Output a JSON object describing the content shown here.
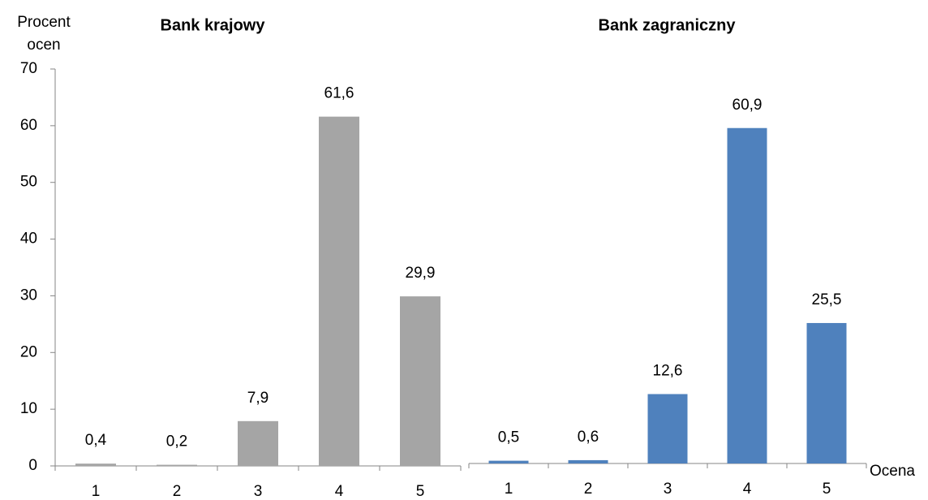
{
  "chart_data": [
    {
      "type": "bar",
      "title": "Bank  krajowy",
      "y_label": "Procent ocen",
      "categories": [
        "1",
        "2",
        "3",
        "4",
        "5"
      ],
      "values": [
        0.4,
        0.2,
        7.9,
        61.6,
        29.9
      ],
      "value_labels": [
        "0,4",
        "0,2",
        "7,9",
        "61,6",
        "29,9"
      ],
      "color": "#a5a5a5",
      "ylim": [
        0,
        70
      ],
      "yticks": [
        0,
        10,
        20,
        30,
        40,
        50,
        60,
        70
      ]
    },
    {
      "type": "bar",
      "title": "Bank zagraniczny",
      "x_label": "Ocena",
      "categories": [
        "1",
        "2",
        "3",
        "4",
        "5"
      ],
      "values": [
        0.5,
        0.6,
        12.6,
        60.9,
        25.5
      ],
      "value_labels": [
        "0,5",
        "0,6",
        "12,6",
        "60,9",
        "25,5"
      ],
      "color": "#4f81bd",
      "ylim": [
        0,
        70
      ]
    }
  ]
}
